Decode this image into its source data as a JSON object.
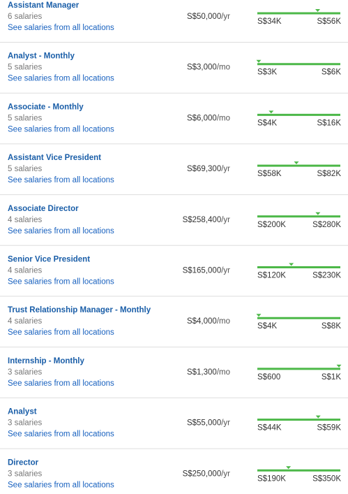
{
  "rows": [
    {
      "title": "Assistant Manager",
      "count": "6 salaries",
      "link": "See salaries from all locations",
      "pay_label": "S$50,000",
      "unit": "/yr",
      "pay": 50000,
      "low": 34000,
      "low_label": "S$34K",
      "high": 56000,
      "high_label": "S$56K"
    },
    {
      "title": "Analyst - Monthly",
      "count": "5 salaries",
      "link": "See salaries from all locations",
      "pay_label": "S$3,000",
      "unit": "/mo",
      "pay": 3000,
      "low": 3000,
      "low_label": "S$3K",
      "high": 6000,
      "high_label": "S$6K"
    },
    {
      "title": "Associate - Monthly",
      "count": "5 salaries",
      "link": "See salaries from all locations",
      "pay_label": "S$6,000",
      "unit": "/mo",
      "pay": 6000,
      "low": 4000,
      "low_label": "S$4K",
      "high": 16000,
      "high_label": "S$16K"
    },
    {
      "title": "Assistant Vice President",
      "count": "5 salaries",
      "link": "See salaries from all locations",
      "pay_label": "S$69,300",
      "unit": "/yr",
      "pay": 69300,
      "low": 58000,
      "low_label": "S$58K",
      "high": 82000,
      "high_label": "S$82K"
    },
    {
      "title": "Associate Director",
      "count": "4 salaries",
      "link": "See salaries from all locations",
      "pay_label": "S$258,400",
      "unit": "/yr",
      "pay": 258400,
      "low": 200000,
      "low_label": "S$200K",
      "high": 280000,
      "high_label": "S$280K"
    },
    {
      "title": "Senior Vice President",
      "count": "4 salaries",
      "link": "See salaries from all locations",
      "pay_label": "S$165,000",
      "unit": "/yr",
      "pay": 165000,
      "low": 120000,
      "low_label": "S$120K",
      "high": 230000,
      "high_label": "S$230K"
    },
    {
      "title": "Trust Relationship Manager - Monthly",
      "count": "4 salaries",
      "link": "See salaries from all locations",
      "pay_label": "S$4,000",
      "unit": "/mo",
      "pay": 4000,
      "low": 4000,
      "low_label": "S$4K",
      "high": 8000,
      "high_label": "S$8K"
    },
    {
      "title": "Internship - Monthly",
      "count": "3 salaries",
      "link": "See salaries from all locations",
      "pay_label": "S$1,300",
      "unit": "/mo",
      "pay": 1300,
      "low": 600,
      "low_label": "S$600",
      "high": 1000,
      "high_label": "S$1K"
    },
    {
      "title": "Analyst",
      "count": "3 salaries",
      "link": "See salaries from all locations",
      "pay_label": "S$55,000",
      "unit": "/yr",
      "pay": 55000,
      "low": 44000,
      "low_label": "S$44K",
      "high": 59000,
      "high_label": "S$59K"
    },
    {
      "title": "Director",
      "count": "3 salaries",
      "link": "See salaries from all locations",
      "pay_label": "S$250,000",
      "unit": "/yr",
      "pay": 250000,
      "low": 190000,
      "low_label": "S$190K",
      "high": 350000,
      "high_label": "S$350K"
    }
  ]
}
